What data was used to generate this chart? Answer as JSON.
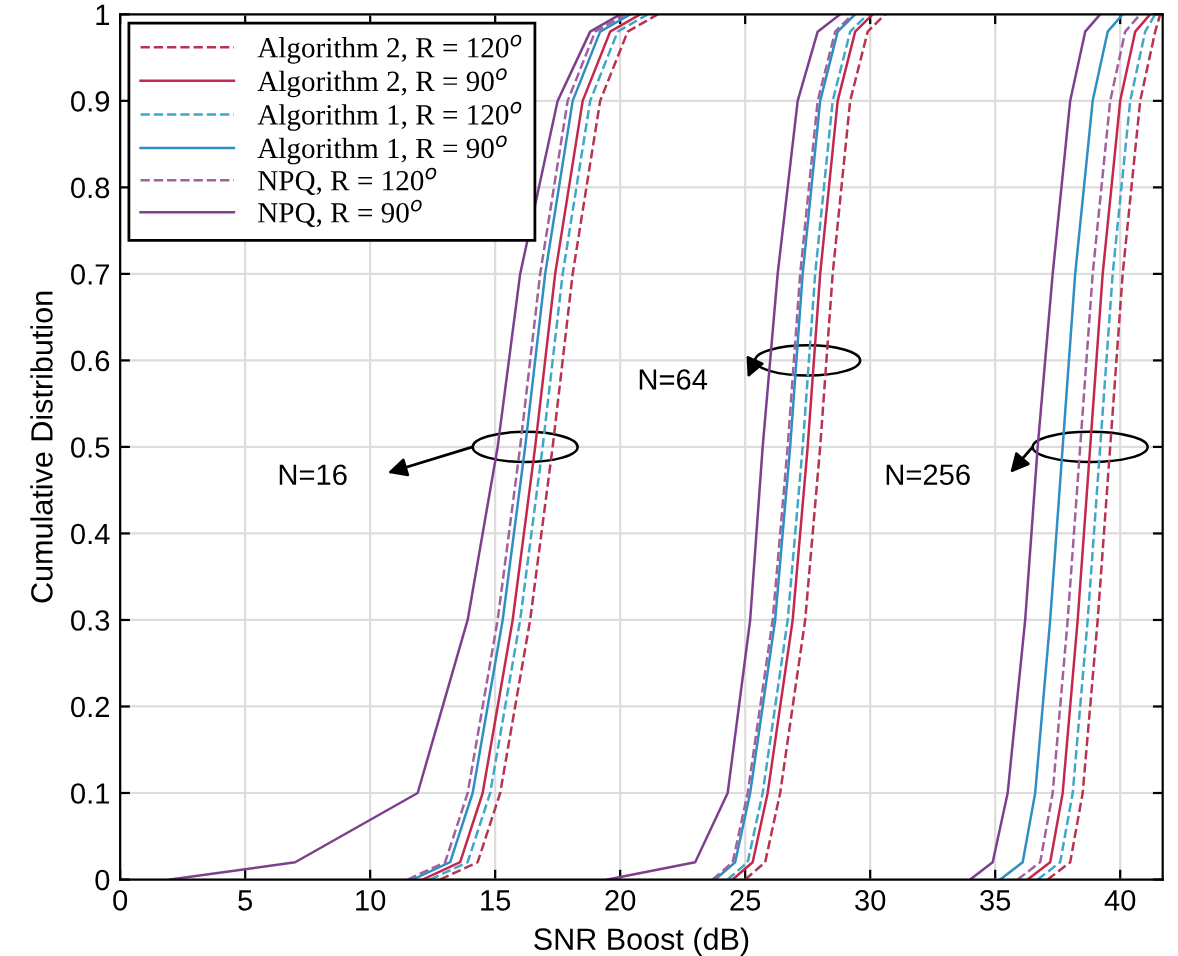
{
  "chart_data": {
    "type": "line",
    "xlabel": "SNR Boost (dB)",
    "ylabel": "Cumulative Distribution",
    "xlim": [
      0,
      41.7
    ],
    "xticks": [
      0,
      5,
      10,
      15,
      20,
      25,
      30,
      35,
      40
    ],
    "ylim": [
      0,
      1
    ],
    "yticks": [
      0,
      0.1,
      0.2,
      0.3,
      0.4,
      0.5,
      0.6,
      0.7,
      0.8,
      0.9,
      1
    ],
    "grid": true,
    "legend": "top left",
    "marker": "none",
    "series": [
      {
        "name": "Algorithm 2, R = 120$^{o}$",
        "color": "#b8334f",
        "line_style": "dashed",
        "x": [
          12.8,
          14.3,
          15.2,
          16.4,
          17.3,
          18.1,
          19.2,
          20.3,
          21.5,
          null,
          25.0,
          25.8,
          26.4,
          27.4,
          28.0,
          28.5,
          29.2,
          29.9,
          30.6,
          null,
          37.1,
          38.0,
          38.5,
          39.1,
          39.6,
          40.1,
          40.8,
          41.4,
          41.6
        ],
        "values": [
          0,
          0.02,
          0.1,
          0.3,
          0.5,
          0.7,
          0.9,
          0.98,
          1,
          null,
          0,
          0.02,
          0.1,
          0.3,
          0.5,
          0.7,
          0.9,
          0.98,
          1,
          null,
          0,
          0.02,
          0.1,
          0.3,
          0.5,
          0.7,
          0.9,
          0.98,
          1
        ]
      },
      {
        "name": "Algorithm 2, R = 90$^{o}$",
        "color": "#c4284f",
        "line_style": "solid",
        "x": [
          12.1,
          13.6,
          14.5,
          15.7,
          16.6,
          17.4,
          18.5,
          19.6,
          20.8,
          null,
          24.5,
          25.3,
          25.9,
          26.9,
          27.5,
          28.0,
          28.7,
          29.4,
          30.1,
          null,
          36.3,
          37.2,
          37.7,
          38.3,
          38.8,
          39.3,
          40.0,
          40.6,
          41.2
        ],
        "values": [
          0,
          0.02,
          0.1,
          0.3,
          0.5,
          0.7,
          0.9,
          0.98,
          1,
          null,
          0,
          0.02,
          0.1,
          0.3,
          0.5,
          0.7,
          0.9,
          0.98,
          1,
          null,
          0,
          0.02,
          0.1,
          0.3,
          0.5,
          0.7,
          0.9,
          0.98,
          1
        ]
      },
      {
        "name": "Algorithm 1, R = 120$^{o}$",
        "color": "#3fa8c8",
        "line_style": "dashed",
        "x": [
          12.4,
          13.9,
          14.8,
          16.0,
          16.9,
          17.7,
          18.8,
          19.9,
          21.1,
          null,
          24.3,
          25.1,
          25.7,
          26.7,
          27.3,
          27.8,
          28.5,
          29.2,
          29.9,
          null,
          36.7,
          37.6,
          38.1,
          38.7,
          39.2,
          39.7,
          40.4,
          41.0,
          41.4
        ],
        "values": [
          0,
          0.02,
          0.1,
          0.3,
          0.5,
          0.7,
          0.9,
          0.98,
          1,
          null,
          0,
          0.02,
          0.1,
          0.3,
          0.5,
          0.7,
          0.9,
          0.98,
          1,
          null,
          0,
          0.02,
          0.1,
          0.3,
          0.5,
          0.7,
          0.9,
          0.98,
          1
        ]
      },
      {
        "name": "Algorithm 1, R = 90$^{o}$",
        "color": "#2f8fc4",
        "line_style": "solid",
        "x": [
          11.7,
          13.2,
          14.1,
          15.3,
          16.2,
          17.0,
          18.1,
          19.2,
          20.4,
          null,
          23.8,
          24.6,
          25.2,
          26.2,
          26.8,
          27.3,
          28.0,
          28.7,
          29.4,
          null,
          35.2,
          36.1,
          36.6,
          37.2,
          37.7,
          38.2,
          38.9,
          39.5,
          40.1
        ],
        "values": [
          0,
          0.02,
          0.1,
          0.3,
          0.5,
          0.7,
          0.9,
          0.98,
          1,
          null,
          0,
          0.02,
          0.1,
          0.3,
          0.5,
          0.7,
          0.9,
          0.98,
          1,
          null,
          0,
          0.02,
          0.1,
          0.3,
          0.5,
          0.7,
          0.9,
          0.98,
          1
        ]
      },
      {
        "name": "NPQ, R = 120$^{o}$",
        "color": "#a0619e",
        "line_style": "dashed",
        "x": [
          11.5,
          13.0,
          13.9,
          15.1,
          16.0,
          16.8,
          17.9,
          19.0,
          20.2,
          null,
          23.7,
          24.5,
          25.1,
          26.1,
          26.7,
          27.2,
          27.9,
          28.6,
          29.3,
          null,
          35.9,
          36.8,
          37.3,
          37.9,
          38.4,
          38.9,
          39.6,
          40.2,
          40.8
        ],
        "values": [
          0,
          0.02,
          0.1,
          0.3,
          0.5,
          0.7,
          0.9,
          0.98,
          1,
          null,
          0,
          0.02,
          0.1,
          0.3,
          0.5,
          0.7,
          0.9,
          0.98,
          1,
          null,
          0,
          0.02,
          0.1,
          0.3,
          0.5,
          0.7,
          0.9,
          0.98,
          1
        ]
      },
      {
        "name": "NPQ, R = 90$^{o}$",
        "color": "#7e3f8f",
        "line_style": "solid",
        "x": [
          2.0,
          7.0,
          11.9,
          13.9,
          15.1,
          16.0,
          17.5,
          18.8,
          20.0,
          null,
          19.5,
          23.0,
          24.3,
          25.2,
          25.7,
          26.3,
          27.1,
          27.9,
          28.8,
          null,
          34.0,
          34.9,
          35.5,
          36.2,
          36.7,
          37.3,
          38.0,
          38.6,
          39.2
        ],
        "values": [
          0,
          0.02,
          0.1,
          0.3,
          0.5,
          0.7,
          0.9,
          0.98,
          1,
          null,
          0,
          0.02,
          0.1,
          0.3,
          0.5,
          0.7,
          0.9,
          0.98,
          1,
          null,
          0,
          0.02,
          0.1,
          0.3,
          0.5,
          0.7,
          0.9,
          0.98,
          1
        ]
      }
    ],
    "annotations": [
      "N=16",
      "N=64",
      "N=256"
    ]
  }
}
